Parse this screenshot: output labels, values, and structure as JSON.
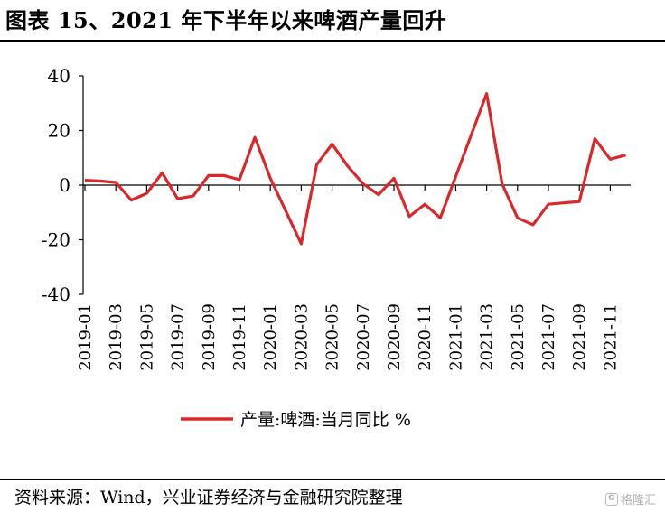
{
  "figure": {
    "title": "图表 15、2021 年下半年以来啤酒产量回升",
    "source": "资料来源：Wind，兴业证券经济与金融研究院整理"
  },
  "watermark": {
    "logo_text": "G",
    "text": "格隆汇"
  },
  "chart_data": {
    "type": "line",
    "title": "",
    "xlabel": "",
    "ylabel": "",
    "ylim": [
      -40,
      40
    ],
    "yticks": [
      -40,
      -20,
      0,
      20,
      40
    ],
    "grid": false,
    "legend": "bottom-center",
    "line_color": "#d9282a",
    "x": [
      "2019-01",
      "2019-02",
      "2019-03",
      "2019-04",
      "2019-05",
      "2019-06",
      "2019-07",
      "2019-08",
      "2019-09",
      "2019-10",
      "2019-11",
      "2019-12",
      "2020-01",
      "2020-02",
      "2020-03",
      "2020-04",
      "2020-05",
      "2020-06",
      "2020-07",
      "2020-08",
      "2020-09",
      "2020-10",
      "2020-11",
      "2020-12",
      "2021-01",
      "2021-02",
      "2021-03",
      "2021-04",
      "2021-05",
      "2021-06",
      "2021-07",
      "2021-08",
      "2021-09",
      "2021-10",
      "2021-11",
      "2021-12"
    ],
    "xtick_labels": [
      "2019-01",
      "2019-03",
      "2019-05",
      "2019-07",
      "2019-09",
      "2019-11",
      "2020-01",
      "2020-03",
      "2020-05",
      "2020-07",
      "2020-09",
      "2020-11",
      "2021-01",
      "2021-03",
      "2021-05",
      "2021-07",
      "2021-09",
      "2021-11"
    ],
    "series": [
      {
        "name": "产量:啤酒:当月同比 %",
        "values": [
          1.8,
          1.5,
          1.0,
          -5.5,
          -3.0,
          4.5,
          -5.0,
          -4.0,
          3.5,
          3.5,
          2.0,
          17.5,
          2.5,
          null,
          -21.5,
          7.5,
          15.0,
          7.0,
          0.5,
          -3.5,
          2.5,
          -11.5,
          -7.0,
          -12.0,
          null,
          null,
          33.5,
          0.5,
          -12.0,
          -14.5,
          -7.0,
          -6.5,
          -6.0,
          17.0,
          9.5,
          11.0
        ]
      }
    ]
  }
}
